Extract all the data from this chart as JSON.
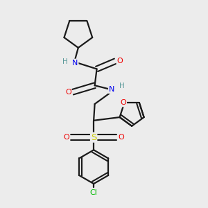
{
  "background_color": "#ececec",
  "bond_color": "#1a1a1a",
  "colors": {
    "N": "#0000ee",
    "O": "#ee0000",
    "S": "#cccc00",
    "Cl": "#00bb00",
    "C": "#1a1a1a",
    "H": "#5a9a9a"
  },
  "figsize": [
    3.0,
    3.0
  ],
  "dpi": 100
}
